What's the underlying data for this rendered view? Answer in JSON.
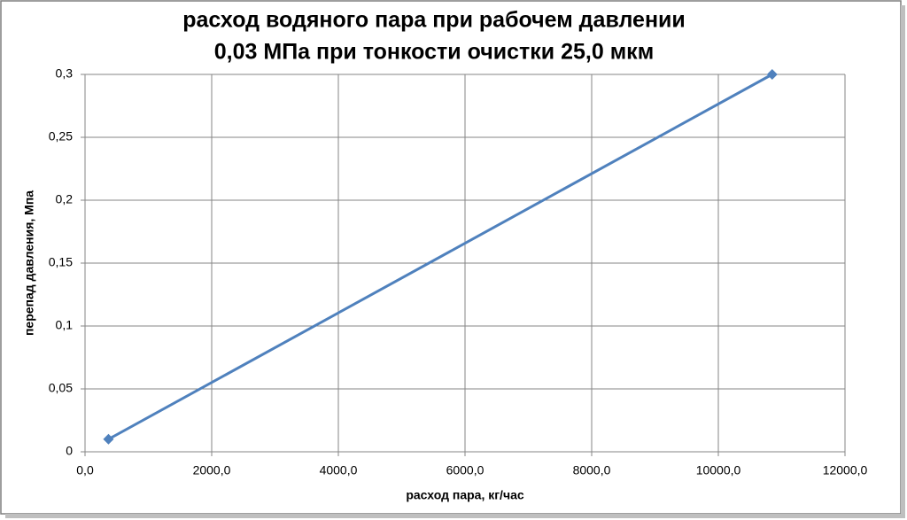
{
  "chart_data": {
    "type": "line",
    "title": [
      "расход водяного пара при рабочем давлении",
      "0,03 МПа при тонкости очистки 25,0 мкм"
    ],
    "x_label": "расход пара, кг/час",
    "y_label": "перепад давления, Мпа",
    "x": [
      370,
      10850
    ],
    "series": [
      {
        "name": "перепад давления",
        "color": "#4f81bd",
        "values": [
          0.01,
          0.3
        ]
      }
    ],
    "xlim": [
      0,
      12000
    ],
    "xticks": [
      {
        "value": 0,
        "label": "0,0"
      },
      {
        "value": 2000,
        "label": "2000,0"
      },
      {
        "value": 4000,
        "label": "4000,0"
      },
      {
        "value": 6000,
        "label": "6000,0"
      },
      {
        "value": 8000,
        "label": "8000,0"
      },
      {
        "value": 10000,
        "label": "10000,0"
      },
      {
        "value": 12000,
        "label": "12000,0"
      }
    ],
    "ylim": [
      0,
      0.3
    ],
    "yticks": [
      0,
      {
        "value": 0.05,
        "label": "0,05"
      },
      {
        "value": 0.1,
        "label": "0,1"
      },
      {
        "value": 0.15,
        "label": "0,15"
      },
      {
        "value": 0.2,
        "label": "0,2"
      },
      {
        "value": 0.25,
        "label": "0,25"
      },
      {
        "value": 0.3,
        "label": "0,3"
      }
    ],
    "grid": true
  }
}
